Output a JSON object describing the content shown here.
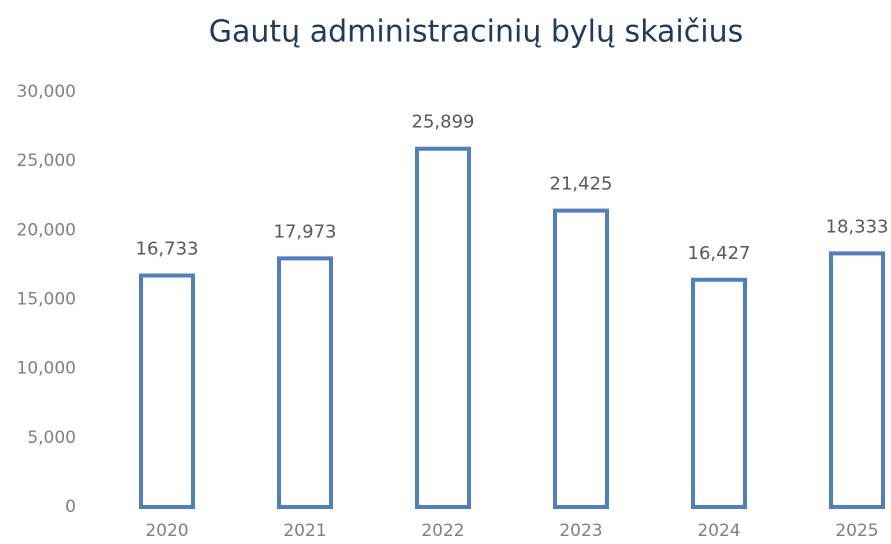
{
  "chart_data": {
    "type": "bar",
    "title": "Gautų administracinių bylų skaičius",
    "categories": [
      "2020",
      "2021",
      "2022",
      "2023",
      "2024",
      "2025"
    ],
    "values": [
      16733,
      17973,
      25899,
      21425,
      16427,
      18333
    ],
    "value_labels": [
      "16,733",
      "17,973",
      "25,899",
      "21,425",
      "16,427",
      "18,333"
    ],
    "color": "#4f7fbf",
    "ylim": [
      0,
      30000
    ],
    "yticks": [
      0,
      {
        "value": 5000,
        "label": "5,000"
      },
      {
        "value": 10000,
        "label": "10,000"
      },
      {
        "value": 15000,
        "label": "15,000"
      },
      {
        "value": 20000,
        "label": "20,000"
      },
      {
        "value": 25000,
        "label": "25,000"
      },
      {
        "value": 30000,
        "label": "30,000"
      }
    ],
    "grid": false
  }
}
